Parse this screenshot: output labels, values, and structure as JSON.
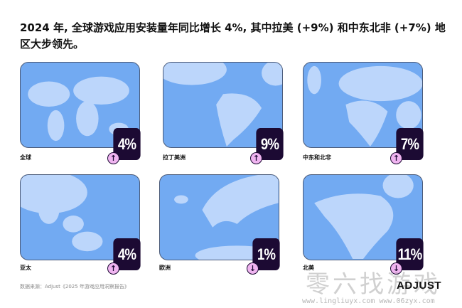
{
  "title": "2024 年, 全球游戏应用安装量年同比增长 4%, 其中拉美 (+9%) 和中东北非 (+7%) 地区大步领先。",
  "colors": {
    "ocean": "#72aaf2",
    "land": "#bcd6fb",
    "badge": "#1c0a33",
    "arrow": "#f0b4f0"
  },
  "regions": [
    {
      "label": "全球",
      "value": "4%",
      "direction": "up",
      "icon": "arrow-up-icon"
    },
    {
      "label": "拉丁美洲",
      "value": "9%",
      "direction": "up",
      "icon": "arrow-up-icon"
    },
    {
      "label": "中东和北非",
      "value": "7%",
      "direction": "up",
      "icon": "arrow-up-icon"
    },
    {
      "label": "亚太",
      "value": "4%",
      "direction": "up",
      "icon": "arrow-up-icon"
    },
    {
      "label": "欧洲",
      "value": "1%",
      "direction": "down",
      "icon": "arrow-down-icon"
    },
    {
      "label": "北美",
      "value": "11%",
      "direction": "down",
      "icon": "arrow-down-icon"
    }
  ],
  "source": "数据来源：Adjust《2025 年游戏应用洞察报告》",
  "logo": "ADJUST",
  "watermark": {
    "text": "零六找游戏",
    "url": "www.lingliuyx.com  www.06zyx.com"
  }
}
